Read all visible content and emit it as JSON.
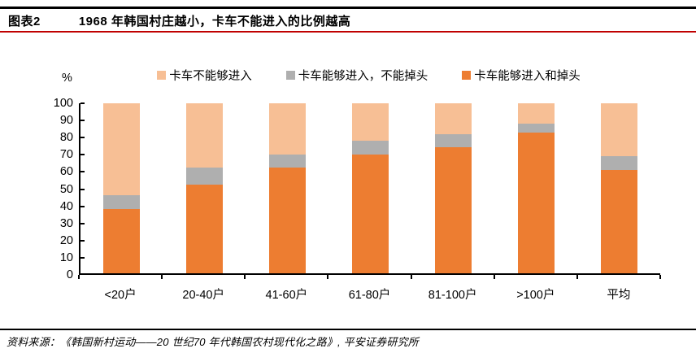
{
  "header": {
    "figure_label": "图表2",
    "title": "1968 年韩国村庄越小，卡车不能进入的比例越高"
  },
  "footer": {
    "source": "资料来源：《韩国新村运动——20 世纪70 年代韩国农村现代化之路》, 平安证券研究所"
  },
  "colors": {
    "rule_red": "#C00000",
    "orange": "#ED7D31",
    "gray": "#AFAFAF",
    "peach": "#F7BF95",
    "axis_black": "#000000"
  },
  "chart_data": {
    "type": "bar",
    "stacked": true,
    "unit_label": "%",
    "title": "1968 年韩国村庄越小，卡车不能进入的比例越高",
    "categories": [
      "<20户",
      "20-40户",
      "41-60户",
      "61-80户",
      "81-100户",
      ">100户",
      "平均"
    ],
    "series": [
      {
        "name": "卡车能够进入和掉头",
        "color": "#ED7D31",
        "values": [
          38,
          52,
          62,
          70,
          74,
          83,
          61
        ]
      },
      {
        "name": "卡车能够进入，不能掉头",
        "color": "#AFAFAF",
        "values": [
          8,
          10,
          8,
          8,
          8,
          5,
          8
        ]
      },
      {
        "name": "卡车不能够进入",
        "color": "#F7BF95",
        "values": [
          54,
          38,
          30,
          22,
          18,
          12,
          31
        ]
      }
    ],
    "legend": [
      {
        "label": "卡车不能够进入",
        "color": "#F7BF95"
      },
      {
        "label": "卡车能够进入，不能掉头",
        "color": "#AFAFAF"
      },
      {
        "label": "卡车能够进入和掉头",
        "color": "#ED7D31"
      }
    ],
    "legend_position": "top-center",
    "y_axis": {
      "min": 0,
      "max": 100,
      "step": 10
    },
    "grid": false
  }
}
